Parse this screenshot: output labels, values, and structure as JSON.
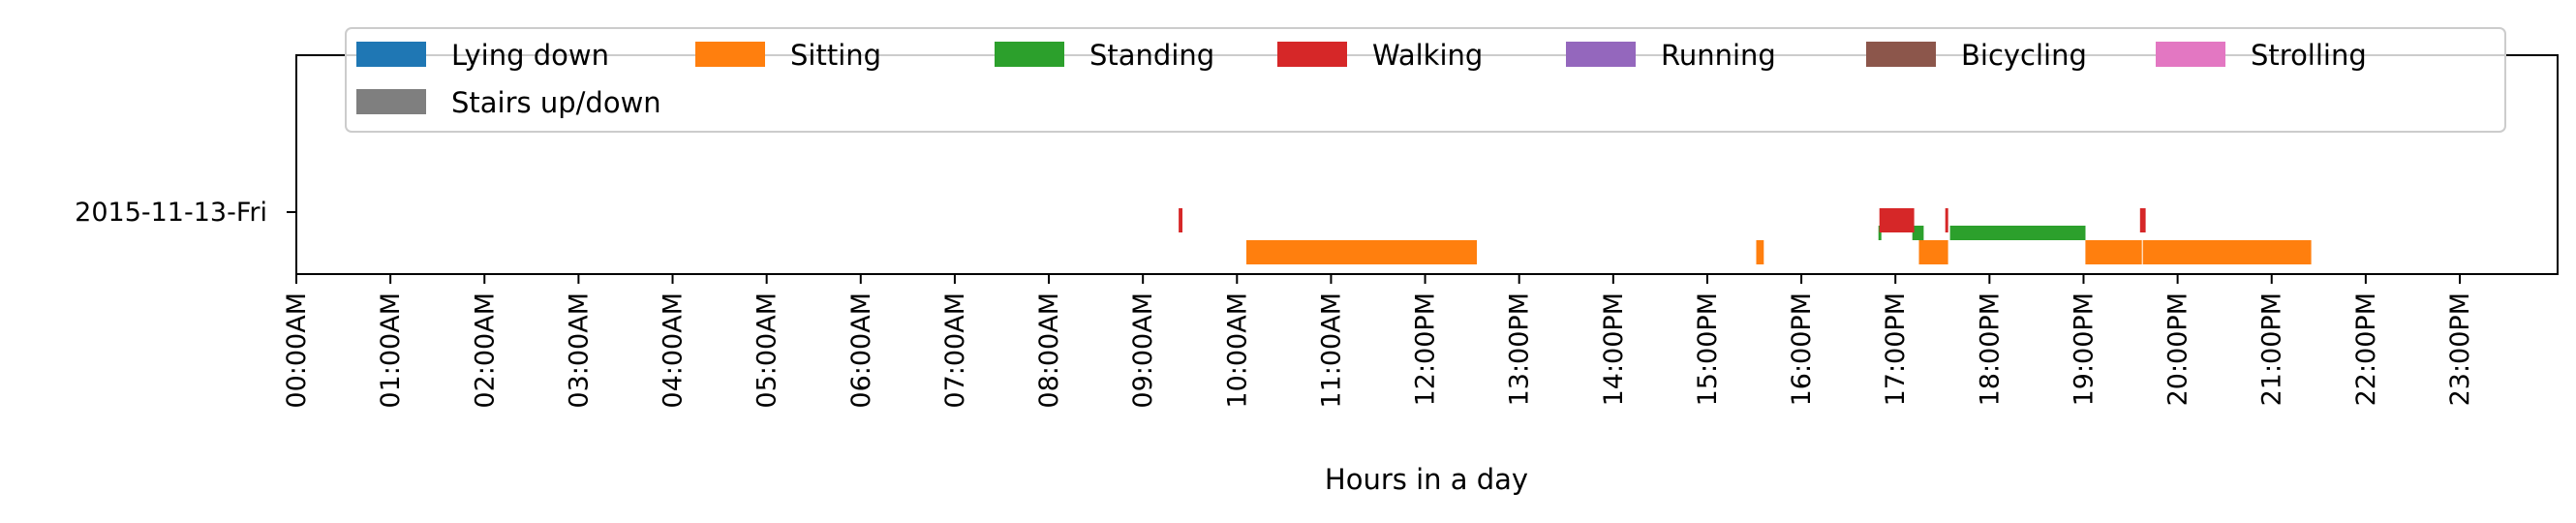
{
  "chart_data": {
    "type": "timeline",
    "xlabel": "Hours in a day",
    "ylabel": "",
    "xlim": [
      0,
      24
    ],
    "grid": false,
    "legend_position": "top",
    "row_label": "2015-11-13-Fri",
    "ticks": [
      "00:00AM",
      "01:00AM",
      "02:00AM",
      "03:00AM",
      "04:00AM",
      "05:00AM",
      "06:00AM",
      "07:00AM",
      "08:00AM",
      "09:00AM",
      "10:00AM",
      "11:00AM",
      "12:00PM",
      "13:00PM",
      "14:00PM",
      "15:00PM",
      "16:00PM",
      "17:00PM",
      "18:00PM",
      "19:00PM",
      "20:00PM",
      "21:00PM",
      "22:00PM",
      "23:00PM"
    ],
    "series": [
      {
        "name": "Lying down",
        "color": "#1f77b4",
        "level": 2,
        "segments": []
      },
      {
        "name": "Sitting",
        "color": "#ff7f0e",
        "level": 0,
        "segments": [
          [
            10.1,
            12.55
          ],
          [
            15.52,
            15.6
          ],
          [
            17.25,
            17.56
          ],
          [
            19.02,
            19.62
          ],
          [
            19.63,
            21.42
          ]
        ]
      },
      {
        "name": "Standing",
        "color": "#2ca02c",
        "level": 1,
        "segments": [
          [
            16.82,
            16.85
          ],
          [
            17.18,
            17.3
          ],
          [
            17.58,
            19.02
          ]
        ]
      },
      {
        "name": "Walking",
        "color": "#d62728",
        "level": 2,
        "segments": [
          [
            9.38,
            9.42
          ],
          [
            16.83,
            17.2
          ],
          [
            17.53,
            17.56
          ],
          [
            19.6,
            19.66
          ]
        ]
      },
      {
        "name": "Running",
        "color": "#9467bd",
        "level": 2,
        "segments": []
      },
      {
        "name": "Bicycling",
        "color": "#8c564b",
        "level": 2,
        "segments": []
      },
      {
        "name": "Strolling",
        "color": "#e377c2",
        "level": 2,
        "segments": []
      },
      {
        "name": "Stairs up/down",
        "color": "#7f7f7f",
        "level": 2,
        "segments": []
      }
    ]
  }
}
